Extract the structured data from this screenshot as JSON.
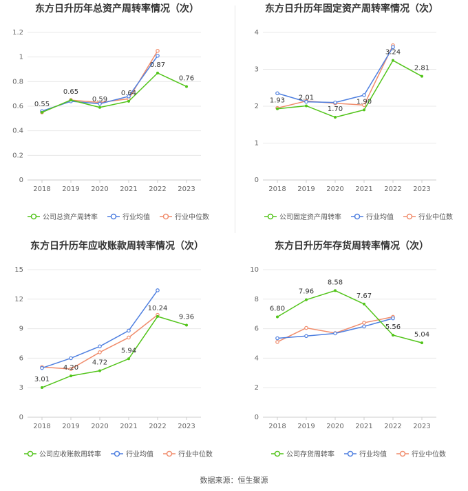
{
  "colors": {
    "company": "#52c41a",
    "avg": "#4e7fe0",
    "median": "#f08c6c",
    "axis": "#cccccc",
    "grid": "#e8e8e8",
    "text": "#666666"
  },
  "legend_labels": {
    "avg": "行业均值",
    "median": "行业中位数"
  },
  "source": "数据来源：恒生聚源",
  "chart_data": [
    {
      "type": "line",
      "title": "东方日升历年总资产周转率情况（次）",
      "x": [
        "2018",
        "2019",
        "2020",
        "2021",
        "2022",
        "2023"
      ],
      "ylim": [
        0,
        1.2
      ],
      "yticks": [
        "0",
        "0.2",
        "0.4",
        "0.6",
        "0.8",
        "1",
        "1.2"
      ],
      "series": [
        {
          "name": "公司总资产周转率",
          "key": "company",
          "values": [
            0.55,
            0.65,
            0.59,
            0.64,
            0.87,
            0.76
          ],
          "labels": [
            "0.55",
            "0.65",
            "0.59",
            "0.64",
            "0.87",
            "0.76"
          ]
        },
        {
          "name": "行业均值",
          "key": "avg",
          "values": [
            0.56,
            0.64,
            0.62,
            0.68,
            1.01,
            null
          ]
        },
        {
          "name": "行业中位数",
          "key": "median",
          "values": [
            0.55,
            0.65,
            0.63,
            0.66,
            1.05,
            null
          ]
        }
      ]
    },
    {
      "type": "line",
      "title": "东方日升历年固定资产周转率情况（次）",
      "x": [
        "2018",
        "2019",
        "2020",
        "2021",
        "2022",
        "2023"
      ],
      "ylim": [
        0,
        4
      ],
      "yticks": [
        "0",
        "1",
        "2",
        "3",
        "4"
      ],
      "series": [
        {
          "name": "公司固定资产周转率",
          "key": "company",
          "values": [
            1.93,
            2.01,
            1.7,
            1.9,
            3.24,
            2.81
          ],
          "labels": [
            "1.93",
            "2.01",
            "1.70",
            "1.90",
            "3.24",
            "2.81"
          ]
        },
        {
          "name": "行业均值",
          "key": "avg",
          "values": [
            2.35,
            2.12,
            2.1,
            2.3,
            3.6,
            null
          ]
        },
        {
          "name": "行业中位数",
          "key": "median",
          "values": [
            1.95,
            2.14,
            2.08,
            2.03,
            3.65,
            null
          ]
        }
      ]
    },
    {
      "type": "line",
      "title": "东方日升历年应收账款周转率情况（次）",
      "x": [
        "2018",
        "2019",
        "2020",
        "2021",
        "2022",
        "2023"
      ],
      "ylim": [
        0,
        15
      ],
      "yticks": [
        "0",
        "3",
        "6",
        "9",
        "12",
        "15"
      ],
      "series": [
        {
          "name": "公司应收账款周转率",
          "key": "company",
          "values": [
            3.01,
            4.2,
            4.72,
            5.94,
            10.24,
            9.36
          ],
          "labels": [
            "3.01",
            "4.20",
            "4.72",
            "5.94",
            "10.24",
            "9.36"
          ]
        },
        {
          "name": "行业均值",
          "key": "avg",
          "values": [
            5.0,
            6.0,
            7.2,
            8.8,
            12.9,
            null
          ]
        },
        {
          "name": "行业中位数",
          "key": "median",
          "values": [
            5.1,
            4.9,
            6.6,
            8.1,
            10.4,
            null
          ]
        }
      ]
    },
    {
      "type": "line",
      "title": "东方日升历年存货周转率情况（次）",
      "x": [
        "2018",
        "2019",
        "2020",
        "2021",
        "2022",
        "2023"
      ],
      "ylim": [
        0,
        10
      ],
      "yticks": [
        "0",
        "2",
        "4",
        "6",
        "8",
        "10"
      ],
      "series": [
        {
          "name": "公司存货周转率",
          "key": "company",
          "values": [
            6.8,
            7.96,
            8.58,
            7.67,
            5.56,
            5.04
          ],
          "labels": [
            "6.80",
            "7.96",
            "8.58",
            "7.67",
            "5.56",
            "5.04"
          ]
        },
        {
          "name": "行业均值",
          "key": "avg",
          "values": [
            5.35,
            5.5,
            5.68,
            6.15,
            6.7,
            null
          ]
        },
        {
          "name": "行业中位数",
          "key": "median",
          "values": [
            5.1,
            6.05,
            5.7,
            6.4,
            6.8,
            null
          ]
        }
      ]
    }
  ]
}
